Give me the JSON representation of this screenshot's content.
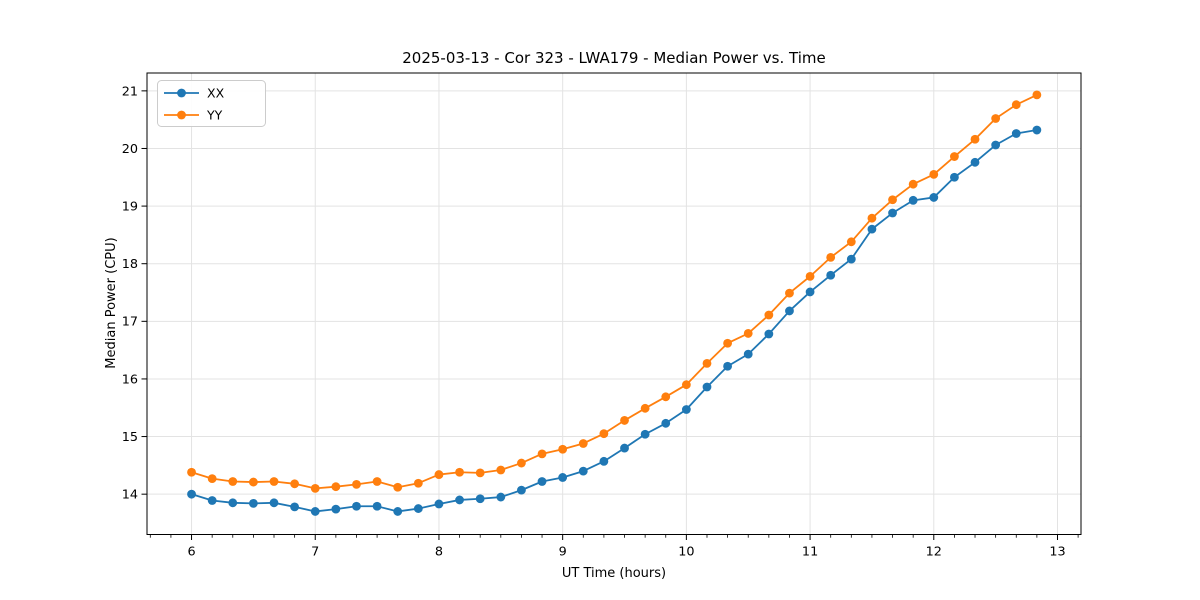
{
  "chart_data": {
    "type": "line",
    "title": "2025-03-13 - Cor 323 - LWA179 - Median Power vs. Time",
    "xlabel": "UT Time (hours)",
    "ylabel": "Median Power (CPU)",
    "xlim": [
      5.64,
      13.19
    ],
    "ylim": [
      13.3,
      21.31
    ],
    "xticks": [
      6,
      7,
      8,
      9,
      10,
      11,
      12,
      13
    ],
    "yticks": [
      14,
      15,
      16,
      17,
      18,
      19,
      20,
      21
    ],
    "minor_xtick_step_hours": 0.16667,
    "grid": true,
    "legend_position": "upper left",
    "grid_color": "#e3e3e3",
    "x": [
      6.0,
      6.1667,
      6.3333,
      6.5,
      6.6667,
      6.8333,
      7.0,
      7.1667,
      7.3333,
      7.5,
      7.6667,
      7.8333,
      8.0,
      8.1667,
      8.3333,
      8.5,
      8.6667,
      8.8333,
      9.0,
      9.1667,
      9.3333,
      9.5,
      9.6667,
      9.8333,
      10.0,
      10.1667,
      10.3333,
      10.5,
      10.6667,
      10.8333,
      11.0,
      11.1667,
      11.3333,
      11.5,
      11.6667,
      11.8333,
      12.0,
      12.1667,
      12.3333,
      12.5,
      12.6667,
      12.8333
    ],
    "series": [
      {
        "name": "XX",
        "color": "#1f77b4",
        "values": [
          14.0,
          13.89,
          13.85,
          13.84,
          13.85,
          13.78,
          13.7,
          13.74,
          13.79,
          13.79,
          13.7,
          13.75,
          13.83,
          13.9,
          13.92,
          13.95,
          14.07,
          14.22,
          14.29,
          14.4,
          14.57,
          14.8,
          15.04,
          15.23,
          15.47,
          15.86,
          16.22,
          16.43,
          16.78,
          17.18,
          17.51,
          17.8,
          18.08,
          18.6,
          18.88,
          19.1,
          19.15,
          19.5,
          19.76,
          20.06,
          20.26,
          20.32
        ]
      },
      {
        "name": "YY",
        "color": "#ff7f0e",
        "values": [
          14.38,
          14.27,
          14.22,
          14.21,
          14.22,
          14.18,
          14.1,
          14.13,
          14.17,
          14.22,
          14.12,
          14.19,
          14.34,
          14.38,
          14.37,
          14.42,
          14.54,
          14.7,
          14.78,
          14.88,
          15.05,
          15.28,
          15.49,
          15.69,
          15.9,
          16.27,
          16.62,
          16.79,
          17.11,
          17.49,
          17.78,
          18.11,
          18.38,
          18.79,
          19.11,
          19.38,
          19.55,
          19.86,
          20.16,
          20.52,
          20.76,
          20.93
        ]
      }
    ]
  }
}
